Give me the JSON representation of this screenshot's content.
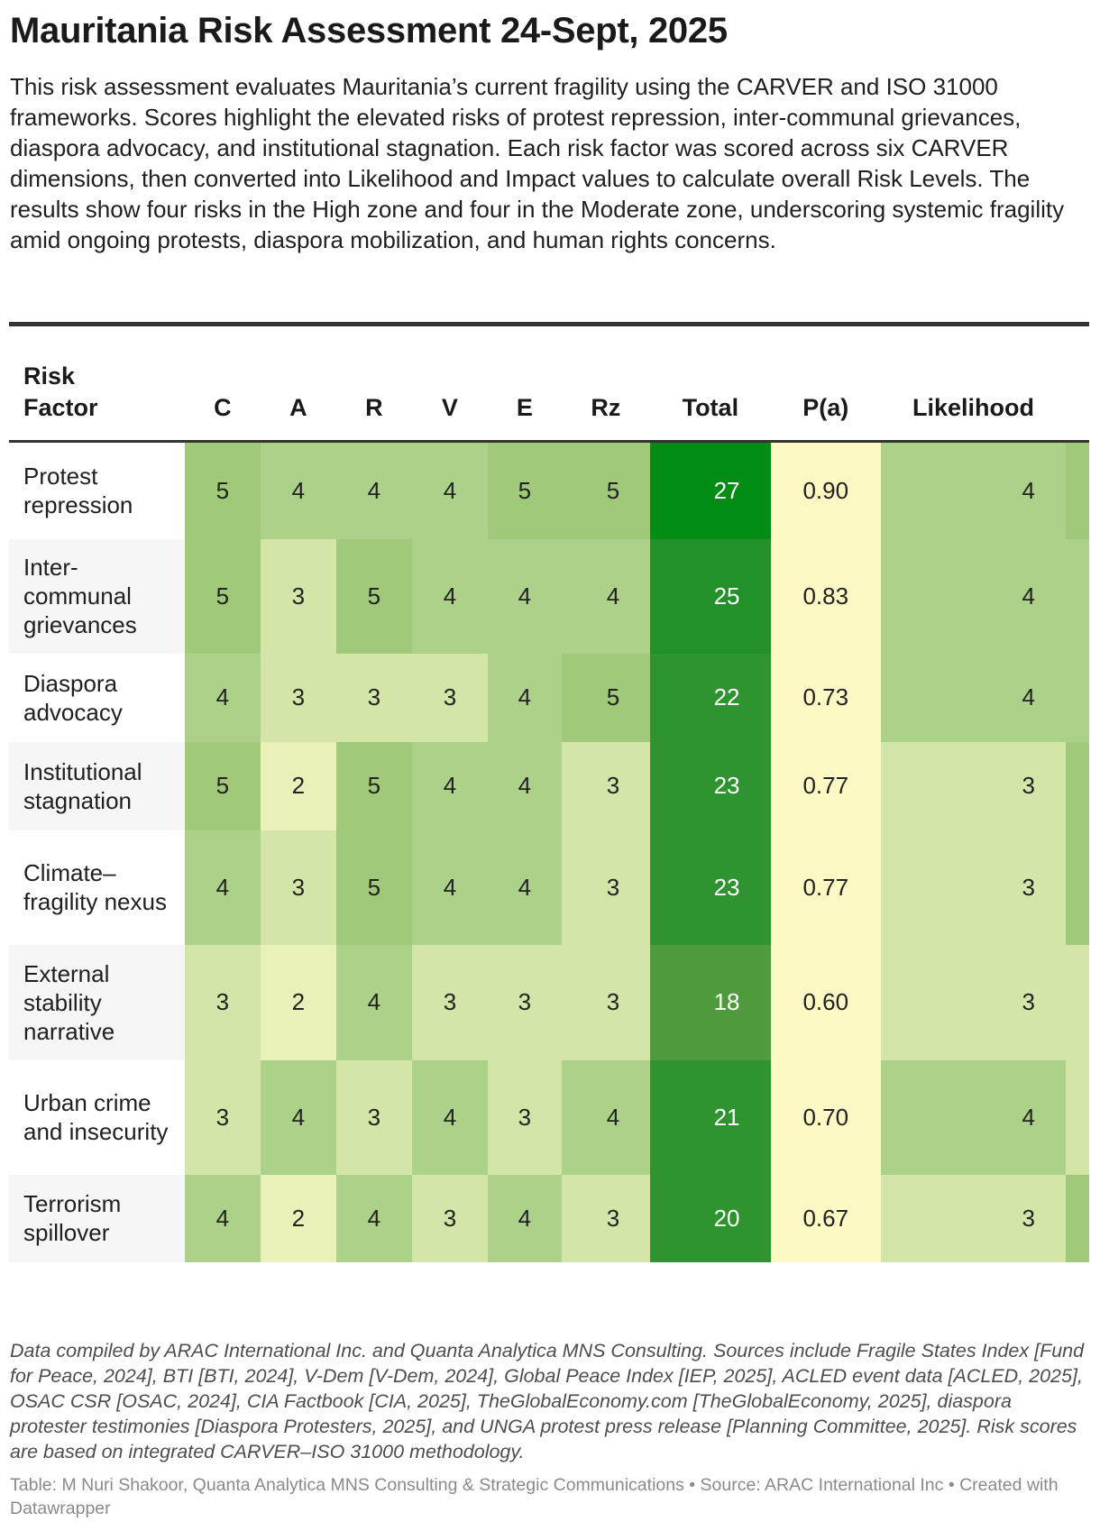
{
  "title": "Mauritania Risk Assessment 24-Sept, 2025",
  "description": "This risk assessment evaluates Mauritania’s current fragility using the CARVER and ISO 31000 frameworks. Scores highlight the elevated risks of protest repression, inter-communal grievances, diaspora advocacy, and institutional stagnation. Each risk factor was scored across six CARVER dimensions, then converted into Likelihood and Impact values to calculate overall Risk Levels. The results show four risks in the High zone and four in the Moderate zone, underscoring systemic fragility amid ongoing protests, diaspora mobilization, and human rights concerns.",
  "footnote": "Data compiled by ARAC International Inc. and Quanta Analytica MNS Consulting. Sources include Fragile States Index [Fund for Peace, 2024], BTI [BTI, 2024], V-Dem [V-Dem, 2024], Global Peace Index [IEP, 2025], ACLED event data [ACLED, 2025], OSAC CSR [OSAC, 2024], CIA Factbook [CIA, 2025], TheGlobalEconomy.com [TheGlobalEconomy, 2025], diaspora protester testimonies [Diaspora Protesters, 2025], and UNGA protest press release [Planning Committee, 2025]. Risk scores are based on integrated CARVER–ISO 31000 methodology.",
  "credit": "Table: M Nuri Shakoor, Quanta Analytica MNS Consulting & Strategic Communications • Source: ARAC International Inc • Created with Datawrapper",
  "colors": {
    "score_5": "#a0ca7a",
    "score_4": "#acd188",
    "score_3": "#d4e5a8",
    "score_2": "#e9f1b9",
    "pa_bg": "#fdf9c4",
    "total_scale": [
      "#4f9a3a",
      "#008c15"
    ],
    "odd_row": "#ffffff",
    "even_row": "#f6f6f6"
  },
  "chart_data": {
    "type": "table",
    "title": "Mauritania Risk Assessment 24-Sept, 2025",
    "columns": [
      "Risk Factor",
      "C",
      "A",
      "R",
      "V",
      "E",
      "Rz",
      "Total",
      "P(a)",
      "Likelihood"
    ],
    "rows": [
      {
        "factor": "Protest repression",
        "C": "5",
        "A": "4",
        "R": "4",
        "V": "4",
        "E": "5",
        "Rz": "5",
        "Total": "27",
        "Pa": "0.90",
        "Likelihood": "4"
      },
      {
        "factor": "Inter-communal grievances",
        "C": "5",
        "A": "3",
        "R": "5",
        "V": "4",
        "E": "4",
        "Rz": "4",
        "Total": "25",
        "Pa": "0.83",
        "Likelihood": "4"
      },
      {
        "factor": "Diaspora advocacy",
        "C": "4",
        "A": "3",
        "R": "3",
        "V": "3",
        "E": "4",
        "Rz": "5",
        "Total": "22",
        "Pa": "0.73",
        "Likelihood": "4"
      },
      {
        "factor": "Institutional stagnation",
        "C": "5",
        "A": "2",
        "R": "5",
        "V": "4",
        "E": "4",
        "Rz": "3",
        "Total": "23",
        "Pa": "0.77",
        "Likelihood": "3"
      },
      {
        "factor": "Climate–fragility nexus",
        "C": "4",
        "A": "3",
        "R": "5",
        "V": "4",
        "E": "4",
        "Rz": "3",
        "Total": "23",
        "Pa": "0.77",
        "Likelihood": "3"
      },
      {
        "factor": "External stability narrative",
        "C": "3",
        "A": "2",
        "R": "4",
        "V": "3",
        "E": "3",
        "Rz": "3",
        "Total": "18",
        "Pa": "0.60",
        "Likelihood": "3"
      },
      {
        "factor": "Urban crime and insecurity",
        "C": "3",
        "A": "4",
        "R": "3",
        "V": "4",
        "E": "3",
        "Rz": "4",
        "Total": "21",
        "Pa": "0.70",
        "Likelihood": "4"
      },
      {
        "factor": "Terrorism spillover",
        "C": "4",
        "A": "2",
        "R": "4",
        "V": "3",
        "E": "4",
        "Rz": "3",
        "Total": "20",
        "Pa": "0.67",
        "Likelihood": "3"
      }
    ]
  }
}
